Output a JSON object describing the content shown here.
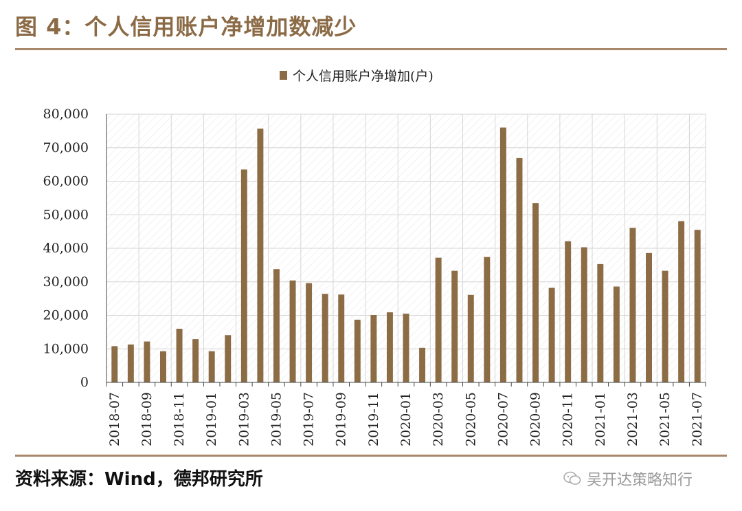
{
  "header": {
    "title": "图 4：个人信用账户净增加数减少"
  },
  "footer": {
    "source": "资料来源：Wind，德邦研究所",
    "watermark": "吴开达策略知行"
  },
  "colors": {
    "bar": "#8B6C45",
    "title": "#8B6A46",
    "rule": "#A8876A"
  },
  "chart_data": {
    "type": "bar",
    "legend": {
      "label": "个人信用账户净增加(户)",
      "position": "top-center"
    },
    "ylim": [
      0,
      80000
    ],
    "yticks": [
      "0",
      "10,000",
      "20,000",
      "30,000",
      "40,000",
      "50,000",
      "60,000",
      "70,000",
      "80,000"
    ],
    "grid": true,
    "categories": [
      "2018-07",
      "2018-08",
      "2018-09",
      "2018-10",
      "2018-11",
      "2018-12",
      "2019-01",
      "2019-02",
      "2019-03",
      "2019-04",
      "2019-05",
      "2019-06",
      "2019-07",
      "2019-08",
      "2019-09",
      "2019-10",
      "2019-11",
      "2019-12",
      "2020-01",
      "2020-02",
      "2020-03",
      "2020-04",
      "2020-05",
      "2020-06",
      "2020-07",
      "2020-08",
      "2020-09",
      "2020-10",
      "2020-11",
      "2020-12",
      "2021-01",
      "2021-02",
      "2021-03",
      "2021-04",
      "2021-05",
      "2021-06",
      "2021-07"
    ],
    "xtick_labels": [
      "2018-07",
      "2018-09",
      "2018-11",
      "2019-01",
      "2019-03",
      "2019-05",
      "2019-07",
      "2019-09",
      "2019-11",
      "2020-01",
      "2020-03",
      "2020-05",
      "2020-07",
      "2020-09",
      "2020-11",
      "2021-01",
      "2021-03",
      "2021-05",
      "2021-07"
    ],
    "series": [
      {
        "name": "个人信用账户净增加(户)",
        "values": [
          10800,
          11300,
          12200,
          9300,
          16000,
          12900,
          9300,
          14100,
          63500,
          75700,
          33800,
          30400,
          29600,
          26400,
          26200,
          18700,
          20100,
          20900,
          20500,
          10300,
          37200,
          33300,
          26100,
          37400,
          76000,
          66900,
          53500,
          28200,
          42100,
          40300,
          35300,
          28600,
          46100,
          38600,
          33300,
          48100,
          45500
        ]
      }
    ]
  }
}
